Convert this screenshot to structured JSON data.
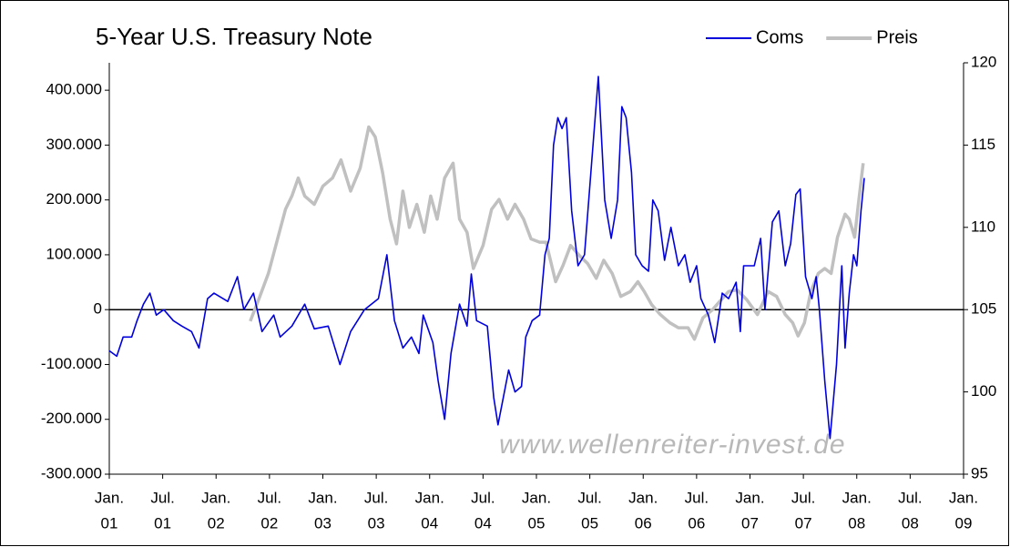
{
  "chart_data": {
    "type": "line",
    "title": "5-Year U.S. Treasury Note",
    "annotations": [
      "www.wellenreiter-invest.de"
    ],
    "legend": "top-right",
    "zero_line": true,
    "negative_tick_color": "#ff0000",
    "xlim": [
      2001,
      2009
    ],
    "xticks": [
      {
        "value": 2001.0,
        "label": [
          "Jan.",
          "01"
        ]
      },
      {
        "value": 2001.5,
        "label": [
          "Jul.",
          "01"
        ]
      },
      {
        "value": 2002.0,
        "label": [
          "Jan.",
          "02"
        ]
      },
      {
        "value": 2002.5,
        "label": [
          "Jul.",
          "02"
        ]
      },
      {
        "value": 2003.0,
        "label": [
          "Jan.",
          "03"
        ]
      },
      {
        "value": 2003.5,
        "label": [
          "Jul.",
          "03"
        ]
      },
      {
        "value": 2004.0,
        "label": [
          "Jan.",
          "04"
        ]
      },
      {
        "value": 2004.5,
        "label": [
          "Jul.",
          "04"
        ]
      },
      {
        "value": 2005.0,
        "label": [
          "Jan.",
          "05"
        ]
      },
      {
        "value": 2005.5,
        "label": [
          "Jul.",
          "05"
        ]
      },
      {
        "value": 2006.0,
        "label": [
          "Jan.",
          "06"
        ]
      },
      {
        "value": 2006.5,
        "label": [
          "Jul.",
          "06"
        ]
      },
      {
        "value": 2007.0,
        "label": [
          "Jan.",
          "07"
        ]
      },
      {
        "value": 2007.5,
        "label": [
          "Jul.",
          "07"
        ]
      },
      {
        "value": 2008.0,
        "label": [
          "Jan.",
          "08"
        ]
      },
      {
        "value": 2008.5,
        "label": [
          "Jul.",
          "08"
        ]
      },
      {
        "value": 2009.0,
        "label": [
          "Jan.",
          "09"
        ]
      }
    ],
    "ylim": [
      -300000,
      450000
    ],
    "yticks": [
      {
        "value": 400000,
        "label": "400.000"
      },
      {
        "value": 300000,
        "label": "300.000"
      },
      {
        "value": 200000,
        "label": "200.000"
      },
      {
        "value": 100000,
        "label": "100.000"
      },
      0,
      {
        "value": -100000,
        "label": "-100.000"
      },
      {
        "value": -200000,
        "label": "-200.000"
      },
      {
        "value": -300000,
        "label": "-300.000"
      }
    ],
    "y2lim": [
      95,
      120
    ],
    "y2ticks": [
      120,
      115,
      110,
      105,
      100,
      95
    ],
    "series": [
      {
        "name": "Coms",
        "color": "#0000dd",
        "x": [
          2001.0,
          2001.07,
          2001.13,
          2001.21,
          2001.26,
          2001.32,
          2001.38,
          2001.44,
          2001.51,
          2001.6,
          2001.68,
          2001.77,
          2001.84,
          2001.92,
          2001.98,
          2002.11,
          2002.2,
          2002.26,
          2002.35,
          2002.43,
          2002.54,
          2002.6,
          2002.71,
          2002.83,
          2002.92,
          2003.05,
          2003.16,
          2003.26,
          2003.39,
          2003.52,
          2003.6,
          2003.67,
          2003.75,
          2003.83,
          2003.9,
          2003.94,
          2004.03,
          2004.08,
          2004.14,
          2004.2,
          2004.28,
          2004.35,
          2004.39,
          2004.44,
          2004.54,
          2004.6,
          2004.64,
          2004.68,
          2004.74,
          2004.8,
          2004.86,
          2004.9,
          2004.96,
          2005.03,
          2005.08,
          2005.12,
          2005.16,
          2005.2,
          2005.24,
          2005.28,
          2005.33,
          2005.39,
          2005.45,
          2005.51,
          2005.58,
          2005.64,
          2005.7,
          2005.76,
          2005.8,
          2005.84,
          2005.89,
          2005.93,
          2005.99,
          2006.05,
          2006.09,
          2006.14,
          2006.2,
          2006.26,
          2006.33,
          2006.39,
          2006.44,
          2006.5,
          2006.54,
          2006.61,
          2006.67,
          2006.74,
          2006.8,
          2006.87,
          2006.91,
          2006.94,
          2007.04,
          2007.1,
          2007.14,
          2007.21,
          2007.27,
          2007.33,
          2007.38,
          2007.43,
          2007.47,
          2007.52,
          2007.58,
          2007.62,
          2007.65,
          2007.7,
          2007.75,
          2007.81,
          2007.86,
          2007.89,
          2007.93,
          2007.97,
          2008.0,
          2008.04,
          2008.07
        ],
        "values": [
          -75000,
          -85000,
          -50000,
          -50000,
          -20000,
          10000,
          30000,
          -10000,
          0,
          -20000,
          -30000,
          -40000,
          -70000,
          20000,
          30000,
          15000,
          60000,
          0,
          30000,
          -40000,
          -10000,
          -50000,
          -30000,
          10000,
          -35000,
          -30000,
          -100000,
          -40000,
          0,
          20000,
          100000,
          -20000,
          -70000,
          -50000,
          -80000,
          -10000,
          -60000,
          -130000,
          -200000,
          -80000,
          10000,
          -30000,
          65000,
          -20000,
          -30000,
          -160000,
          -210000,
          -170000,
          -110000,
          -150000,
          -140000,
          -50000,
          -20000,
          -10000,
          100000,
          130000,
          300000,
          350000,
          330000,
          350000,
          180000,
          80000,
          100000,
          250000,
          425000,
          200000,
          130000,
          200000,
          370000,
          350000,
          250000,
          100000,
          80000,
          70000,
          200000,
          180000,
          90000,
          150000,
          80000,
          100000,
          50000,
          80000,
          20000,
          -10000,
          -60000,
          30000,
          20000,
          50000,
          -40000,
          80000,
          80000,
          130000,
          0,
          160000,
          180000,
          80000,
          120000,
          210000,
          220000,
          60000,
          20000,
          60000,
          0,
          -130000,
          -235000,
          -100000,
          80000,
          -70000,
          30000,
          100000,
          80000,
          180000,
          240000
        ]
      },
      {
        "name": "Preis",
        "color": "#c0c0c0",
        "axis": "y2",
        "x": [
          2002.32,
          2002.41,
          2002.49,
          2002.58,
          2002.65,
          2002.71,
          2002.77,
          2002.83,
          2002.92,
          2003.0,
          2003.09,
          2003.17,
          2003.26,
          2003.35,
          2003.43,
          2003.49,
          2003.56,
          2003.63,
          2003.69,
          2003.75,
          2003.81,
          2003.88,
          2003.95,
          2004.01,
          2004.07,
          2004.14,
          2004.22,
          2004.28,
          2004.35,
          2004.41,
          2004.5,
          2004.58,
          2004.65,
          2004.73,
          2004.8,
          2004.88,
          2004.95,
          2005.03,
          2005.09,
          2005.18,
          2005.25,
          2005.32,
          2005.4,
          2005.48,
          2005.56,
          2005.63,
          2005.71,
          2005.79,
          2005.88,
          2005.95,
          2006.01,
          2006.08,
          2006.16,
          2006.25,
          2006.33,
          2006.42,
          2006.48,
          2006.56,
          2006.65,
          2006.73,
          2006.8,
          2006.88,
          2006.97,
          2007.07,
          2007.17,
          2007.25,
          2007.33,
          2007.4,
          2007.45,
          2007.51,
          2007.57,
          2007.64,
          2007.7,
          2007.76,
          2007.82,
          2007.89,
          2007.93,
          2007.98,
          2008.02,
          2008.06
        ],
        "values": [
          104.3,
          105.8,
          107.2,
          109.4,
          111.1,
          111.9,
          113.0,
          111.9,
          111.4,
          112.5,
          113.0,
          114.1,
          112.2,
          113.6,
          116.1,
          115.5,
          113.3,
          110.5,
          109.0,
          112.2,
          110.0,
          111.4,
          109.7,
          111.9,
          110.5,
          113.0,
          113.9,
          110.5,
          109.7,
          107.5,
          108.9,
          111.1,
          111.7,
          110.5,
          111.4,
          110.5,
          109.3,
          109.1,
          109.1,
          106.7,
          107.7,
          108.9,
          108.3,
          107.8,
          106.9,
          108.0,
          107.2,
          105.8,
          106.1,
          106.7,
          106.1,
          105.3,
          104.7,
          104.2,
          103.9,
          103.9,
          103.2,
          104.5,
          105.0,
          105.6,
          106.1,
          106.2,
          105.6,
          104.7,
          106.1,
          105.8,
          104.7,
          104.2,
          103.4,
          104.2,
          106.1,
          107.2,
          107.5,
          107.2,
          109.4,
          110.8,
          110.5,
          109.4,
          111.7,
          113.9
        ]
      }
    ]
  }
}
